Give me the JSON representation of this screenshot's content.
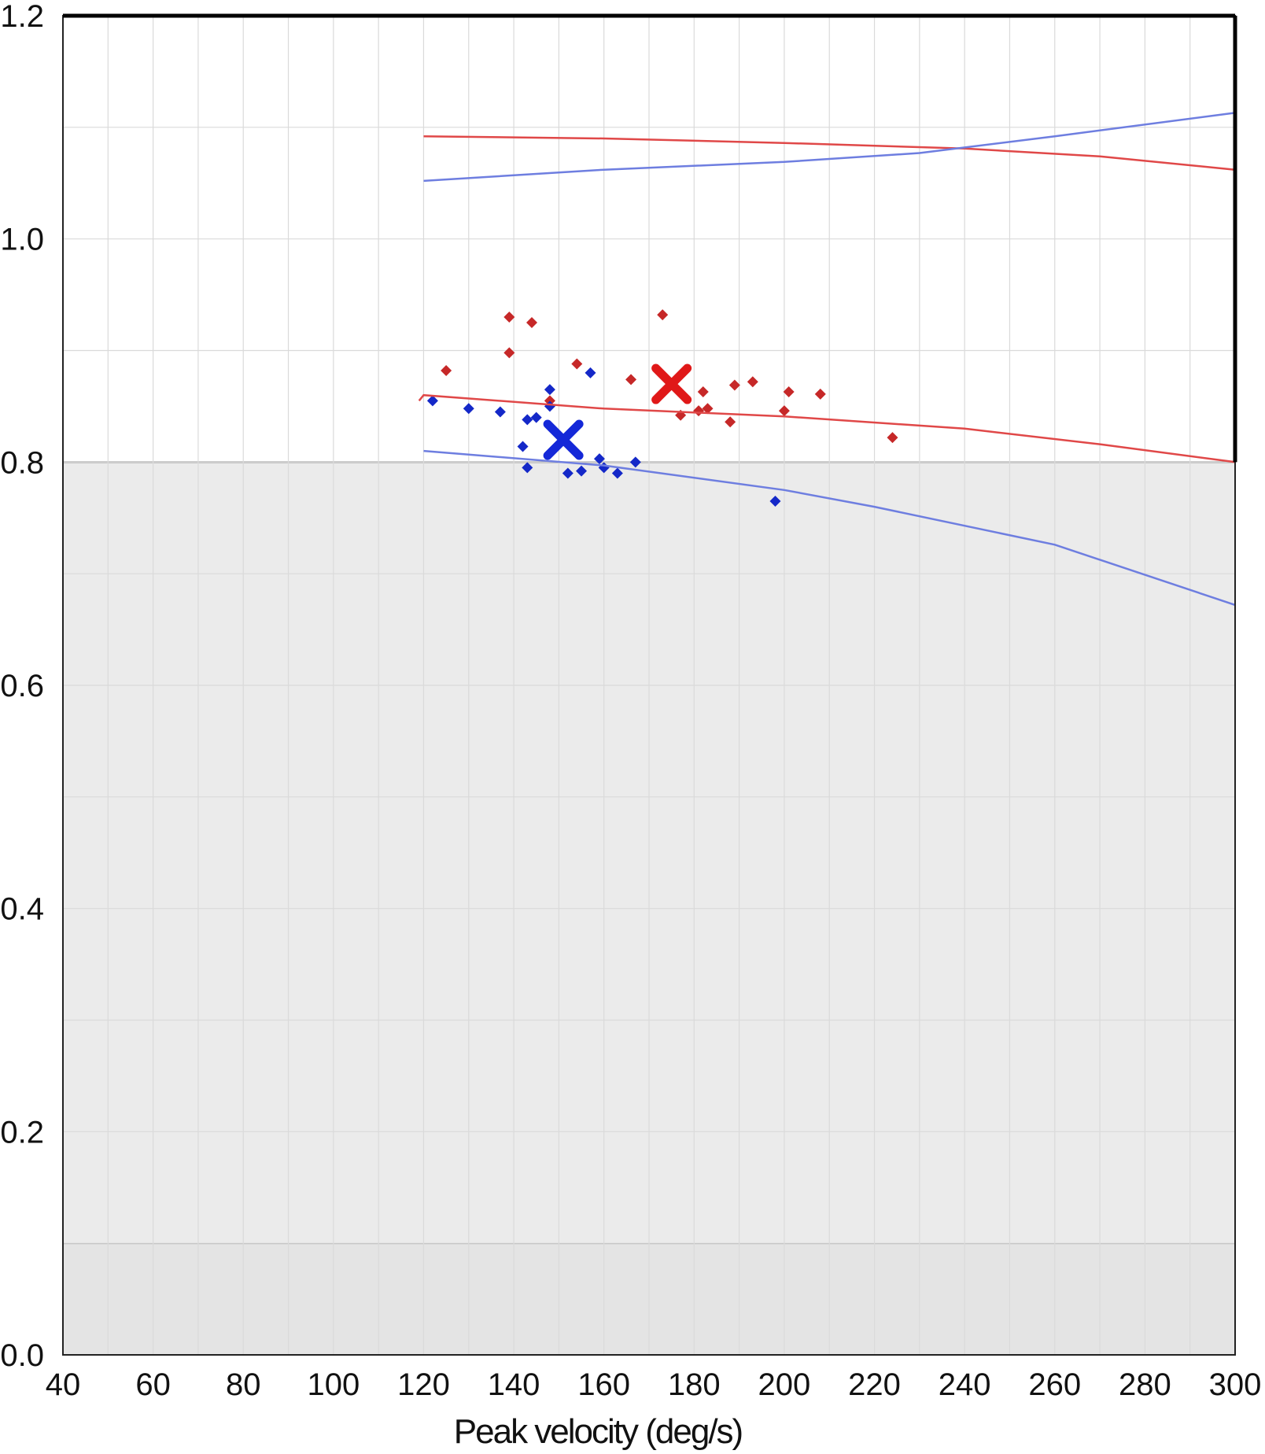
{
  "chart_data": {
    "type": "scatter",
    "xlabel": "Peak velocity (deg/s)",
    "ylabel": "",
    "xlim": [
      40,
      300
    ],
    "ylim": [
      0.0,
      1.2
    ],
    "x_ticks": [
      40,
      60,
      80,
      100,
      120,
      140,
      160,
      180,
      200,
      220,
      240,
      260,
      280,
      300
    ],
    "x_tick_labels": [
      "40",
      "60",
      "80",
      "100",
      "120",
      "140",
      "160",
      "180",
      "200",
      "220",
      "240",
      "260",
      "280",
      "300"
    ],
    "y_ticks": [
      0.0,
      0.2,
      0.4,
      0.6,
      0.8,
      1.0,
      1.2
    ],
    "y_tick_labels": [
      "0.0",
      "0.2",
      "0.4",
      "0.6",
      "0.8",
      "1.0",
      "1.2"
    ],
    "grid": true,
    "shaded_bands": [
      {
        "y_from": 0.0,
        "y_to": 0.1,
        "color": "#e4e4e4"
      },
      {
        "y_from": 0.1,
        "y_to": 0.8,
        "color": "#ebebeb"
      }
    ],
    "series": [
      {
        "kind": "points",
        "color": "#c62828",
        "marker": "diamond",
        "points": [
          [
            125,
            0.882
          ],
          [
            139,
            0.93
          ],
          [
            139,
            0.898
          ],
          [
            144,
            0.925
          ],
          [
            148,
            0.855
          ],
          [
            154,
            0.888
          ],
          [
            166,
            0.874
          ],
          [
            173,
            0.932
          ],
          [
            177,
            0.842
          ],
          [
            182,
            0.863
          ],
          [
            181,
            0.846
          ],
          [
            183,
            0.848
          ],
          [
            188,
            0.836
          ],
          [
            189,
            0.869
          ],
          [
            193,
            0.872
          ],
          [
            200,
            0.846
          ],
          [
            201,
            0.863
          ],
          [
            208,
            0.861
          ],
          [
            224,
            0.822
          ]
        ]
      },
      {
        "kind": "points",
        "color": "#1428c8",
        "marker": "diamond",
        "points": [
          [
            122,
            0.855
          ],
          [
            130,
            0.848
          ],
          [
            137,
            0.845
          ],
          [
            142,
            0.814
          ],
          [
            143,
            0.838
          ],
          [
            143,
            0.795
          ],
          [
            145,
            0.84
          ],
          [
            148,
            0.865
          ],
          [
            148,
            0.85
          ],
          [
            152,
            0.79
          ],
          [
            155,
            0.792
          ],
          [
            157,
            0.88
          ],
          [
            159,
            0.803
          ],
          [
            160,
            0.795
          ],
          [
            163,
            0.79
          ],
          [
            167,
            0.8
          ],
          [
            198,
            0.765
          ]
        ]
      },
      {
        "kind": "mean",
        "color": "#e01818",
        "marker": "x",
        "points": [
          [
            175,
            0.87
          ]
        ]
      },
      {
        "kind": "mean",
        "color": "#1428d8",
        "marker": "x",
        "points": [
          [
            151,
            0.82
          ]
        ]
      },
      {
        "kind": "line",
        "color": "#e04848",
        "points": [
          [
            120,
            1.092
          ],
          [
            160,
            1.09
          ],
          [
            200,
            1.086
          ],
          [
            240,
            1.081
          ],
          [
            270,
            1.074
          ],
          [
            300,
            1.062
          ]
        ]
      },
      {
        "kind": "line",
        "color": "#e04848",
        "points": [
          [
            119,
            0.855
          ],
          [
            120,
            0.86
          ],
          [
            160,
            0.848
          ],
          [
            200,
            0.841
          ],
          [
            240,
            0.83
          ],
          [
            270,
            0.816
          ],
          [
            300,
            0.8
          ]
        ]
      },
      {
        "kind": "line",
        "color": "#6e7ee0",
        "points": [
          [
            120,
            1.052
          ],
          [
            160,
            1.062
          ],
          [
            200,
            1.069
          ],
          [
            230,
            1.077
          ],
          [
            260,
            1.092
          ],
          [
            300,
            1.113
          ]
        ]
      },
      {
        "kind": "line",
        "color": "#6e7ee0",
        "points": [
          [
            120,
            0.81
          ],
          [
            160,
            0.797
          ],
          [
            200,
            0.775
          ],
          [
            220,
            0.76
          ],
          [
            260,
            0.726
          ],
          [
            300,
            0.672
          ]
        ]
      }
    ]
  }
}
